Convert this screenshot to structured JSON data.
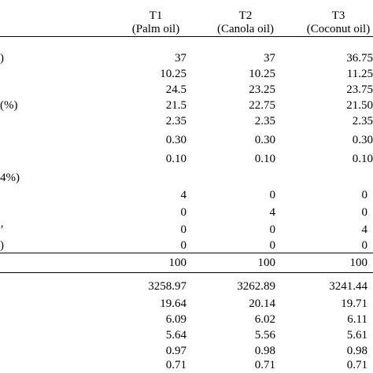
{
  "header": {
    "columns": [
      {
        "code": "T1",
        "name": "(Palm oil)"
      },
      {
        "code": "T2",
        "name": "(Canola oil)"
      },
      {
        "code": "T3",
        "name": "(Coconut oil)"
      }
    ]
  },
  "row_labels": [
    ")",
    "(%)",
    "4%)",
    "’",
    ")"
  ],
  "ingredient_rows": [
    {
      "t1": "37",
      "t2": "37",
      "t3": "36.75"
    },
    {
      "t1": "10.25",
      "t2": "10.25",
      "t3": "11.25"
    },
    {
      "t1": "24.5",
      "t2": "23.25",
      "t3": "23.75"
    },
    {
      "t1": "21.5",
      "t2": "22.75",
      "t3": "21.50"
    },
    {
      "t1": "2.35",
      "t2": "2.35",
      "t3": "2.35"
    },
    {
      "t1": "0.30",
      "t2": "0.30",
      "t3": "0.30"
    },
    {
      "t1": "0.10",
      "t2": "0.10",
      "t3": "0.10"
    }
  ],
  "oil_rows": [
    {
      "t1": "4",
      "t2": "0",
      "t3": "0"
    },
    {
      "t1": "0",
      "t2": "4",
      "t3": "0"
    },
    {
      "t1": "0",
      "t2": "0",
      "t3": "4"
    },
    {
      "t1": "0",
      "t2": "0",
      "t3": "0"
    }
  ],
  "total_row": {
    "t1": "100",
    "t2": "100",
    "t3": "100"
  },
  "composition_rows": [
    {
      "t1": "3258.97",
      "t2": "3262.89",
      "t3": "3241.44"
    },
    {
      "t1": "19.64",
      "t2": "20.14",
      "t3": "19.71"
    },
    {
      "t1": "6.09",
      "t2": "6.02",
      "t3": "6.11"
    },
    {
      "t1": "5.64",
      "t2": "5.56",
      "t3": "5.61"
    },
    {
      "t1": "0.97",
      "t2": "0.98",
      "t3": "0.98"
    },
    {
      "t1": "0.71",
      "t2": "0.71",
      "t3": "0.71"
    }
  ]
}
